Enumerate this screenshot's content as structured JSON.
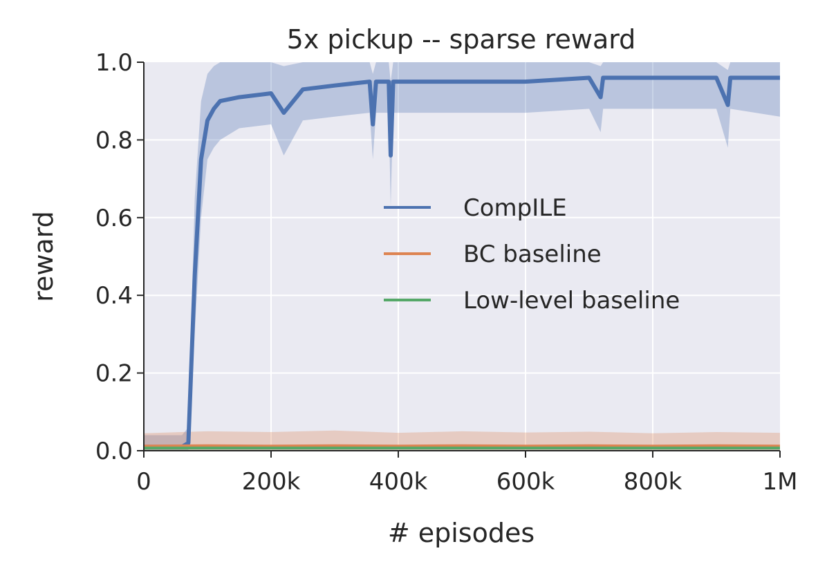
{
  "chart_data": {
    "type": "line",
    "title": "5x pickup -- sparse reward",
    "xlabel": "# episodes",
    "ylabel": "reward",
    "xlim": [
      0,
      1000000
    ],
    "ylim": [
      0.0,
      1.0
    ],
    "x_ticks": [
      {
        "value": 0,
        "label": "0"
      },
      {
        "value": 200000,
        "label": "200k"
      },
      {
        "value": 400000,
        "label": "400k"
      },
      {
        "value": 600000,
        "label": "600k"
      },
      {
        "value": 800000,
        "label": "800k"
      },
      {
        "value": 1000000,
        "label": "1M"
      }
    ],
    "y_ticks": [
      {
        "value": 0.0,
        "label": "0.0"
      },
      {
        "value": 0.2,
        "label": "0.2"
      },
      {
        "value": 0.4,
        "label": "0.4"
      },
      {
        "value": 0.6,
        "label": "0.6"
      },
      {
        "value": 0.8,
        "label": "0.8"
      },
      {
        "value": 1.0,
        "label": "1.0"
      }
    ],
    "grid": true,
    "legend_position": "center-right",
    "background_color": "#EAEAF2",
    "series": [
      {
        "name": "CompILE",
        "color": "#4C72B0",
        "x": [
          0,
          60000,
          70000,
          80000,
          90000,
          100000,
          110000,
          120000,
          150000,
          200000,
          220000,
          250000,
          300000,
          355000,
          360000,
          365000,
          385000,
          388000,
          392000,
          400000,
          500000,
          600000,
          700000,
          718000,
          722000,
          800000,
          900000,
          918000,
          922000,
          1000000
        ],
        "y": [
          0.01,
          0.01,
          0.02,
          0.45,
          0.75,
          0.85,
          0.88,
          0.9,
          0.91,
          0.92,
          0.87,
          0.93,
          0.94,
          0.95,
          0.84,
          0.95,
          0.95,
          0.76,
          0.95,
          0.95,
          0.95,
          0.95,
          0.96,
          0.91,
          0.96,
          0.96,
          0.96,
          0.89,
          0.96,
          0.96
        ],
        "band_lower": [
          0.0,
          0.0,
          0.0,
          0.3,
          0.6,
          0.75,
          0.78,
          0.8,
          0.83,
          0.84,
          0.76,
          0.85,
          0.86,
          0.87,
          0.75,
          0.87,
          0.87,
          0.63,
          0.87,
          0.87,
          0.87,
          0.87,
          0.88,
          0.82,
          0.88,
          0.88,
          0.88,
          0.78,
          0.88,
          0.86
        ],
        "band_upper": [
          0.04,
          0.04,
          0.06,
          0.65,
          0.9,
          0.97,
          0.99,
          1.0,
          1.0,
          1.0,
          0.99,
          1.0,
          1.0,
          1.0,
          0.97,
          1.0,
          1.0,
          0.95,
          1.0,
          1.0,
          1.0,
          1.0,
          1.0,
          0.99,
          1.0,
          1.0,
          1.0,
          0.98,
          1.0,
          1.0
        ]
      },
      {
        "name": "BC baseline",
        "color": "#DD8452",
        "x": [
          0,
          100000,
          200000,
          300000,
          400000,
          500000,
          600000,
          700000,
          800000,
          900000,
          1000000
        ],
        "y": [
          0.012,
          0.013,
          0.012,
          0.013,
          0.012,
          0.013,
          0.012,
          0.013,
          0.012,
          0.013,
          0.012
        ],
        "band_lower": [
          0.0,
          0.0,
          0.0,
          0.0,
          0.0,
          0.0,
          0.0,
          0.0,
          0.0,
          0.0,
          0.0
        ],
        "band_upper": [
          0.045,
          0.05,
          0.048,
          0.052,
          0.046,
          0.05,
          0.047,
          0.049,
          0.045,
          0.048,
          0.046
        ]
      },
      {
        "name": "Low-level baseline",
        "color": "#55A868",
        "x": [
          0,
          1000000
        ],
        "y": [
          0.007,
          0.007
        ],
        "band_lower": [
          0.003,
          0.003
        ],
        "band_upper": [
          0.012,
          0.012
        ]
      }
    ]
  }
}
